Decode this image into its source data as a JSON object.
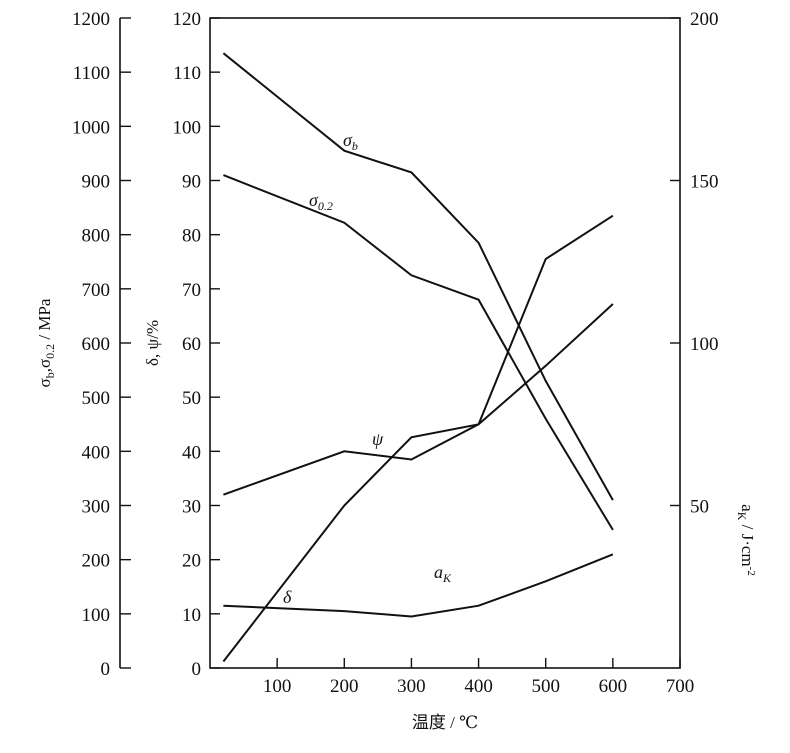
{
  "chart_data": {
    "type": "line",
    "title": "",
    "xlabel": "温度 / ℃",
    "x_ticks": [
      100,
      200,
      300,
      400,
      500,
      600,
      700
    ],
    "xlim": [
      0,
      700
    ],
    "axes": {
      "left_outer": {
        "label": "σb,σ0.2 / MPa",
        "ylim": [
          0,
          1200
        ],
        "ticks": [
          0,
          100,
          200,
          300,
          400,
          500,
          600,
          700,
          800,
          900,
          1000,
          1100,
          1200
        ]
      },
      "left_inner": {
        "label": "δ, ψ/%",
        "ylim": [
          0,
          120
        ],
        "ticks": [
          0,
          10,
          20,
          30,
          40,
          50,
          60,
          70,
          80,
          90,
          100,
          110,
          120
        ]
      },
      "right": {
        "label": "aK / J·cm⁻²",
        "ylim": [
          0,
          200
        ],
        "ticks": [
          50,
          100,
          150,
          200
        ]
      }
    },
    "series": [
      {
        "name": "σb",
        "axis": "left_outer",
        "x": [
          20,
          200,
          300,
          400,
          500,
          600
        ],
        "y": [
          1135,
          955,
          915,
          785,
          530,
          310
        ]
      },
      {
        "name": "σ0.2",
        "axis": "left_outer",
        "x": [
          20,
          200,
          300,
          400,
          500,
          600
        ],
        "y": [
          910,
          822,
          725,
          680,
          460,
          255
        ]
      },
      {
        "name": "ψ",
        "axis": "left_inner",
        "x": [
          20,
          200,
          300,
          400,
          500,
          600
        ],
        "y": [
          32,
          40,
          38.5,
          45,
          75.5,
          83.5
        ]
      },
      {
        "name": "δ",
        "axis": "left_inner",
        "x": [
          20,
          200,
          300,
          400,
          500,
          600
        ],
        "y": [
          11.5,
          10.5,
          9.5,
          11.5,
          16,
          21
        ]
      },
      {
        "name": "aK",
        "axis": "right",
        "x": [
          20,
          200,
          300,
          400,
          500,
          600
        ],
        "y": [
          2,
          50,
          71,
          75,
          93,
          112
        ]
      }
    ]
  }
}
